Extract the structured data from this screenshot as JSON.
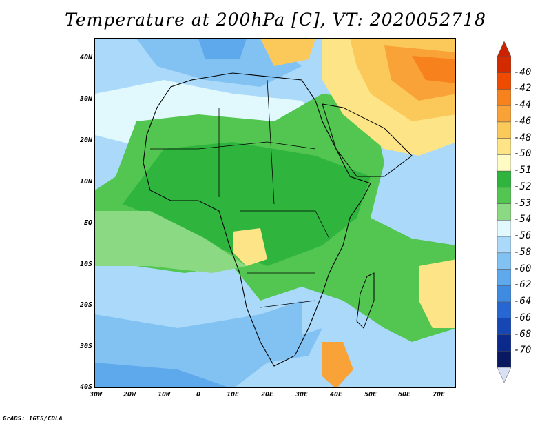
{
  "title": "Temperature at 200hPa [C], VT: 2020052718",
  "credit": "GrADS: IGES/COLA",
  "map": {
    "variable": "Temperature",
    "level": "200hPa",
    "units": "C",
    "valid_time": "2020052718",
    "lon_range": [
      -30,
      75
    ],
    "lat_range": [
      -40,
      45
    ],
    "lat_ticks": [
      "40N",
      "30N",
      "20N",
      "10N",
      "EQ",
      "10S",
      "20S",
      "30S",
      "40S"
    ],
    "lon_ticks": [
      "30W",
      "20W",
      "10W",
      "0",
      "10E",
      "20E",
      "30E",
      "40E",
      "50E",
      "60E",
      "70E"
    ]
  },
  "colorbar": {
    "labels": [
      "-40",
      "-42",
      "-44",
      "-46",
      "-48",
      "-50",
      "-51",
      "-52",
      "-53",
      "-54",
      "-56",
      "-58",
      "-60",
      "-62",
      "-64",
      "-66",
      "-68",
      "-70"
    ],
    "colors": [
      "#d42a00",
      "#ee4a00",
      "#f7811d",
      "#f9a237",
      "#fbc85a",
      "#fde587",
      "#fffbc4",
      "#2fb53e",
      "#52c651",
      "#8bd982",
      "#e1f9fd",
      "#aad9f9",
      "#82c2f3",
      "#5ea8ec",
      "#3e8be1",
      "#2767d3",
      "#1747b5",
      "#0c2a8c",
      "#081961"
    ],
    "top_arrow_color": "#cc2200",
    "bottom_arrow_color": "#d9e0f5"
  }
}
